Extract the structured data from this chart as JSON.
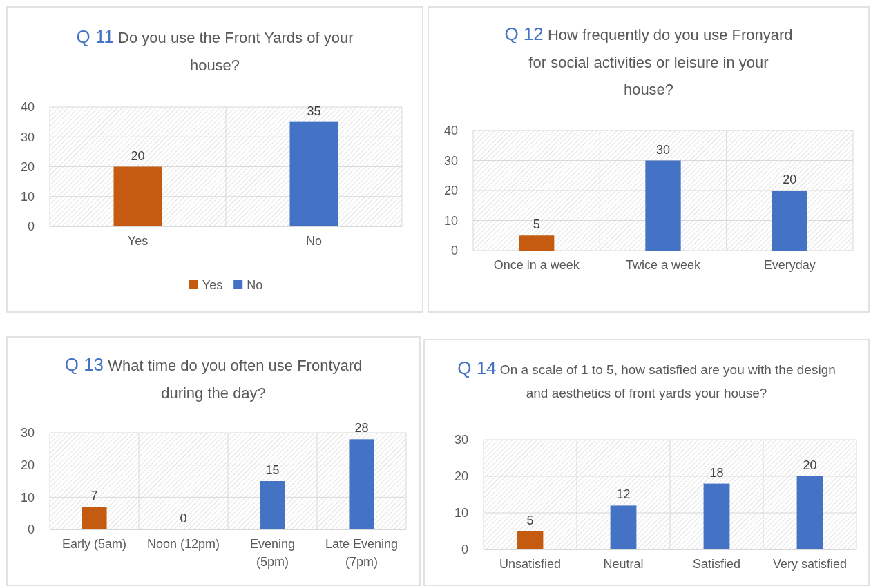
{
  "chart_data": [
    {
      "type": "bar",
      "title": "Q 11 Do you use the Front Yards of your house?",
      "categories": [
        "Yes",
        "No"
      ],
      "stacked": true,
      "series": [
        {
          "name": "Yes",
          "color": "#c55a11",
          "values": [
            20,
            null
          ]
        },
        {
          "name": "No",
          "color": "#4472c4",
          "values": [
            null,
            35
          ]
        }
      ],
      "ylim": [
        0,
        40
      ],
      "yticks": [
        0,
        10,
        20,
        30,
        40
      ],
      "grid": true,
      "data_labels": true,
      "legend": "bottom"
    },
    {
      "type": "bar",
      "title": "Q 12 How frequently do you use Fronyard for social activities or leisure in your house?",
      "categories": [
        "Once in a week",
        "Twice a week",
        "Everyday"
      ],
      "values": [
        5,
        30,
        20
      ],
      "colors": [
        "#c55a11",
        "#4472c4",
        "#4472c4"
      ],
      "ylim": [
        0,
        40
      ],
      "yticks": [
        0,
        10,
        20,
        30,
        40
      ],
      "grid": true,
      "data_labels": true
    },
    {
      "type": "bar",
      "title": "Q 13 What time do you often use Frontyard during the day?",
      "categories": [
        "Early (5am)",
        "Noon (12pm)",
        "Evening (5pm)",
        "Late Evening (7pm)"
      ],
      "values": [
        7,
        0,
        15,
        28
      ],
      "colors": [
        "#c55a11",
        "#4472c4",
        "#4472c4",
        "#4472c4"
      ],
      "ylim": [
        0,
        30
      ],
      "yticks": [
        0,
        10,
        20,
        30
      ],
      "grid": true,
      "data_labels": true
    },
    {
      "type": "bar",
      "title": "Q 14 On a scale of 1 to 5, how satisfied are you with the design and aesthetics of front yards your house?",
      "categories": [
        "Unsatisfied",
        "Neutral",
        "Satisfied",
        "Very satisfied"
      ],
      "values": [
        5,
        12,
        18,
        20
      ],
      "colors": [
        "#c55a11",
        "#4472c4",
        "#4472c4",
        "#4472c4"
      ],
      "ylim": [
        0,
        30
      ],
      "yticks": [
        0,
        10,
        20,
        30
      ],
      "grid": true,
      "data_labels": true
    }
  ]
}
